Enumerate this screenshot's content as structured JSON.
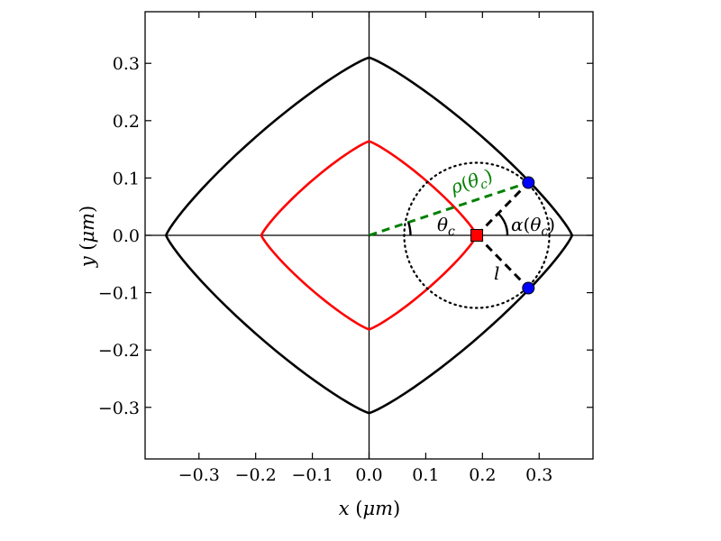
{
  "chart_data": {
    "type": "diagram",
    "xlabel": {
      "var": "x",
      "unit": "μm",
      "open": "(",
      "close": ")"
    },
    "ylabel": {
      "var": "y",
      "unit": "μm",
      "open": "(",
      "close": ")"
    },
    "xlim": [
      -0.395,
      0.395
    ],
    "ylim": [
      -0.39,
      0.39
    ],
    "xticks": [
      -0.3,
      -0.2,
      -0.1,
      0.0,
      0.1,
      0.2,
      0.3
    ],
    "yticks": [
      -0.3,
      -0.2,
      -0.1,
      0.0,
      0.1,
      0.2,
      0.3
    ],
    "xtick_labels": [
      "−0.3",
      "−0.2",
      "−0.1",
      "0.0",
      "0.1",
      "0.2",
      "0.3"
    ],
    "ytick_labels": [
      "−0.3",
      "−0.2",
      "−0.1",
      "0.0",
      "0.1",
      "0.2",
      "0.3"
    ],
    "outer_curve": {
      "color": "#000000",
      "x_extent": 0.358,
      "y_extent": 0.31
    },
    "inner_curve": {
      "color": "#ff0000",
      "x_extent": 0.19,
      "y_extent": 0.164
    },
    "circle": {
      "center": [
        0.19,
        0.0
      ],
      "radius": 0.128,
      "style": "dotted",
      "color": "#000000"
    },
    "center_marker": {
      "x": 0.19,
      "y": 0.0,
      "shape": "square",
      "color": "#ff0000"
    },
    "intersection_points": [
      {
        "x": 0.281,
        "y": 0.092,
        "color": "#0000ff"
      },
      {
        "x": 0.281,
        "y": -0.092,
        "color": "#0000ff"
      }
    ],
    "rho_line": {
      "from": [
        0.0,
        0.0
      ],
      "to": [
        0.281,
        0.092
      ],
      "color": "#008000",
      "style": "dashed"
    },
    "annotations": {
      "rho": {
        "main": "ρ",
        "open": "(",
        "arg": "θ",
        "sub": "c",
        "close": ")",
        "color": "#008000"
      },
      "theta": {
        "main": "θ",
        "sub": "c"
      },
      "alpha": {
        "main": "α",
        "open": "(",
        "arg": "θ",
        "sub": "c",
        "close": ")"
      },
      "l": {
        "main": "l"
      }
    }
  }
}
